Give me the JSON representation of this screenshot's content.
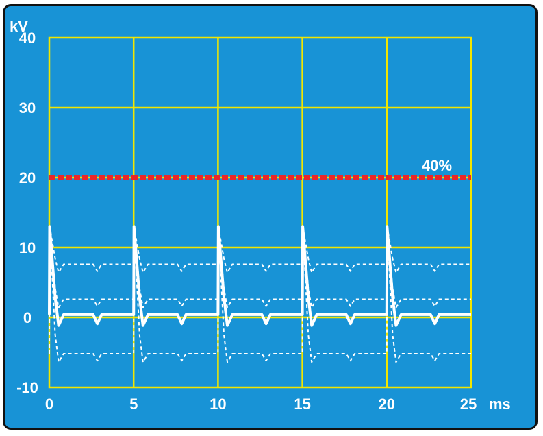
{
  "chart_data": {
    "type": "line",
    "ylabel": "kV",
    "xlabel": "ms",
    "xlim": [
      0,
      25
    ],
    "ylim": [
      -10,
      40
    ],
    "x_ticks": [
      0,
      5,
      10,
      15,
      20,
      25
    ],
    "y_ticks": [
      40,
      30,
      20,
      10,
      0,
      -10
    ],
    "grid": true,
    "threshold": {
      "y": 20,
      "label": "40%",
      "color": "#e8262a"
    },
    "period": 5,
    "spike_peak": 13,
    "series": [
      {
        "style": "solid",
        "color": "#ffffff",
        "baseline": 0.4
      },
      {
        "style": "dashed",
        "color": "#ffffff",
        "baseline": 7.6
      },
      {
        "style": "dashed",
        "color": "#ffffff",
        "baseline": 2.6
      },
      {
        "style": "dashed",
        "color": "#ffffff",
        "baseline": -5.2
      }
    ],
    "colors": {
      "background": "#1893d6",
      "grid": "#f2e600",
      "trace": "#ffffff",
      "threshold": "#e8262a"
    }
  }
}
